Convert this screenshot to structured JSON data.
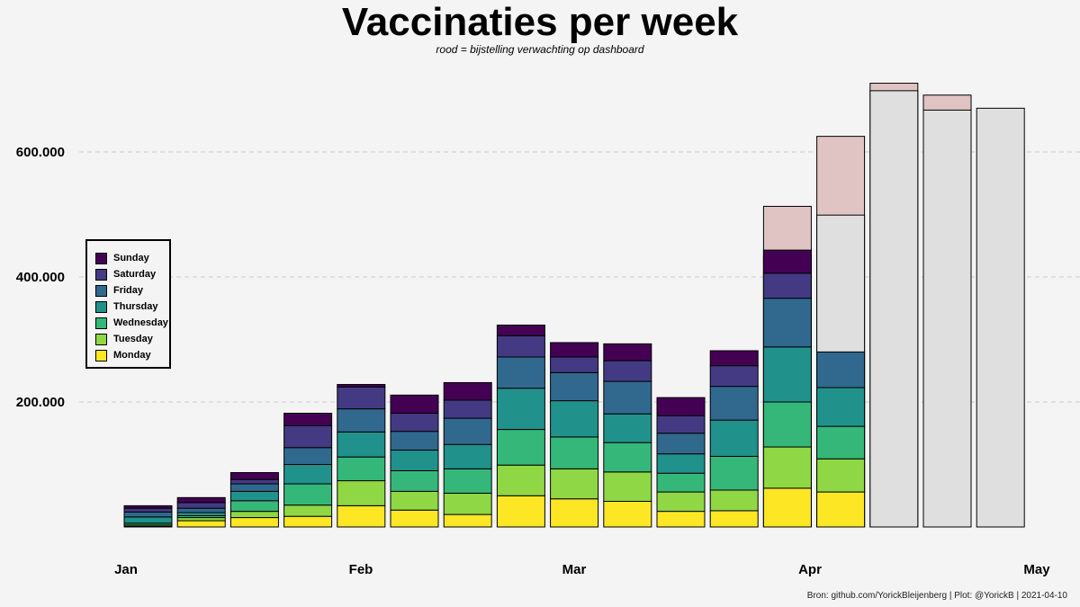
{
  "chart_data": {
    "type": "bar",
    "stacked": true,
    "title": "Vaccinaties per week",
    "subtitle": "rood = bijstelling verwachting op dashboard",
    "caption": "Bron: github.com/YorickBleijenberg | Plot: @YorickB  |  2021-04-10",
    "ylim": [
      0,
      700000
    ],
    "yticks": [
      {
        "value": 200000,
        "label": "200.000"
      },
      {
        "value": 400000,
        "label": "400.000"
      },
      {
        "value": 600000,
        "label": "600.000"
      }
    ],
    "xticks": [
      "Jan",
      "Feb",
      "Mar",
      "Apr",
      "May"
    ],
    "series_order": [
      "Monday",
      "Tuesday",
      "Wednesday",
      "Thursday",
      "Friday",
      "Saturday",
      "Sunday"
    ],
    "colors": {
      "Monday": "#fde725",
      "Tuesday": "#8fd744",
      "Wednesday": "#35b779",
      "Thursday": "#21918c",
      "Friday": "#31688e",
      "Saturday": "#443a83",
      "Sunday": "#440154",
      "forecast": "#dfdfdf",
      "adjustment": "#e0c4c4"
    },
    "legend": {
      "position": "left",
      "entries": [
        "Sunday",
        "Saturday",
        "Friday",
        "Thursday",
        "Wednesday",
        "Tuesday",
        "Monday"
      ]
    },
    "weeks": [
      {
        "week": 1,
        "days": [
          1000,
          2000,
          3000,
          10000,
          8000,
          6000,
          4000
        ]
      },
      {
        "week": 2,
        "days": [
          10000,
          5000,
          3000,
          5000,
          7000,
          9000,
          8000
        ]
      },
      {
        "week": 3,
        "days": [
          15000,
          10000,
          17000,
          15000,
          12000,
          7000,
          11000
        ]
      },
      {
        "week": 4,
        "days": [
          17000,
          18000,
          34000,
          31000,
          27000,
          35000,
          20000
        ]
      },
      {
        "week": 5,
        "days": [
          34000,
          40000,
          38000,
          40000,
          37000,
          35000,
          4000
        ]
      },
      {
        "week": 6,
        "days": [
          27000,
          30000,
          33000,
          33000,
          30000,
          29000,
          29000
        ]
      },
      {
        "week": 7,
        "days": [
          20000,
          34000,
          39000,
          39000,
          42000,
          29000,
          28000
        ]
      },
      {
        "week": 8,
        "days": [
          50000,
          49000,
          57000,
          66000,
          50000,
          34000,
          17000
        ]
      },
      {
        "week": 9,
        "days": [
          45000,
          48000,
          51000,
          58000,
          45000,
          25000,
          23000
        ]
      },
      {
        "week": 10,
        "days": [
          41000,
          47000,
          47000,
          46000,
          52000,
          33000,
          27000
        ]
      },
      {
        "week": 11,
        "days": [
          25000,
          31000,
          30000,
          31000,
          33000,
          28000,
          29000
        ]
      },
      {
        "week": 12,
        "days": [
          26000,
          33000,
          54000,
          58000,
          54000,
          33000,
          24000
        ]
      },
      {
        "week": 13,
        "days": [
          62000,
          66000,
          72000,
          88000,
          78000,
          40000,
          37000
        ],
        "forecast": 434000,
        "adjustment": 513000
      },
      {
        "week": 14,
        "days": [
          56000,
          53000,
          52000,
          62000,
          57000,
          0,
          0
        ],
        "forecast": 499000,
        "adjustment": 625000
      },
      {
        "week": 15,
        "days": [],
        "forecast": 698000,
        "adjustment": 710000
      },
      {
        "week": 16,
        "days": [],
        "forecast": 667000,
        "adjustment": 691000
      },
      {
        "week": 17,
        "days": [],
        "forecast": 670000
      }
    ]
  }
}
